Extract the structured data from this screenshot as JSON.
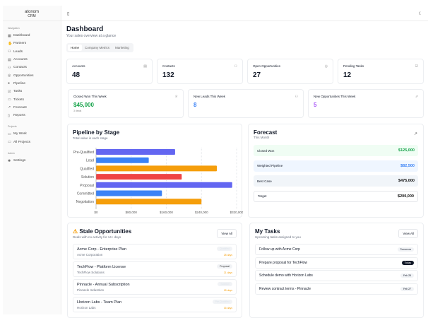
{
  "app": {
    "logo": "atonom",
    "logo_sub": "CRM"
  },
  "sidebar": {
    "sections": [
      {
        "title": "Navigation",
        "items": [
          {
            "label": "Dashboard",
            "icon": "grid-icon"
          },
          {
            "label": "Partners",
            "icon": "handshake-icon"
          },
          {
            "label": "Leads",
            "icon": "user-plus-icon"
          },
          {
            "label": "Accounts",
            "icon": "building-icon"
          },
          {
            "label": "Contacts",
            "icon": "users-icon"
          },
          {
            "label": "Opportunities",
            "icon": "target-icon"
          },
          {
            "label": "Pipeline",
            "icon": "pipeline-icon"
          },
          {
            "label": "Tasks",
            "icon": "checklist-icon"
          },
          {
            "label": "Tickets",
            "icon": "ticket-icon"
          },
          {
            "label": "Forecast",
            "icon": "trend-icon"
          },
          {
            "label": "Reports",
            "icon": "file-icon"
          }
        ]
      },
      {
        "title": "Projects",
        "items": [
          {
            "label": "My Work",
            "icon": "briefcase-icon"
          },
          {
            "label": "All Projects",
            "icon": "folder-icon"
          }
        ]
      },
      {
        "title": "Admin",
        "items": [
          {
            "label": "Settings",
            "icon": "gear-icon"
          }
        ]
      }
    ]
  },
  "header": {
    "title": "Dashboard",
    "subtitle": "Your sales overview at a glance",
    "tabs": [
      "Home",
      "Company Metrics",
      "Marketing"
    ],
    "active_tab": "Home"
  },
  "stats": [
    {
      "label": "Accounts",
      "value": "48"
    },
    {
      "label": "Contacts",
      "value": "132"
    },
    {
      "label": "Open Opportunities",
      "value": "27"
    },
    {
      "label": "Pending Tasks",
      "value": "12"
    }
  ],
  "weekly": [
    {
      "label": "Closed Won This Week",
      "value": "$45,000",
      "note": "3 deals",
      "color": "#16a34a"
    },
    {
      "label": "New Leads This Week",
      "value": "8",
      "color": "#3b82f6"
    },
    {
      "label": "New Opportunities This Week",
      "value": "5",
      "color": "#a855f7"
    }
  ],
  "pipeline": {
    "title": "Pipeline by Stage",
    "subtitle": "Total value in each stage"
  },
  "chart_data": {
    "type": "bar",
    "orientation": "horizontal",
    "categories": [
      "Pre-Qualified",
      "Lead",
      "Qualified",
      "Solution",
      "Proposal",
      "Committed",
      "Negotiation"
    ],
    "values": [
      180000,
      120000,
      275000,
      195000,
      310000,
      150000,
      240000
    ],
    "colors": [
      "#6366f1",
      "#3b82f6",
      "#f59e0b",
      "#ef4444",
      "#6366f1",
      "#3b82f6",
      "#f59e0b"
    ],
    "xlim": [
      0,
      320000
    ],
    "xticks": [
      "$0",
      "$80,000",
      "$160,000",
      "$240,000",
      "$320,000"
    ],
    "grid": true
  },
  "forecast": {
    "title": "Forecast",
    "subtitle": "This Month",
    "rows": [
      {
        "label": "Closed Won",
        "value": "$125,000"
      },
      {
        "label": "Weighted Pipeline",
        "value": "$82,500"
      },
      {
        "label": "Best Case",
        "value": "$475,000"
      },
      {
        "label": "Target",
        "value": "$200,000"
      }
    ]
  },
  "stale": {
    "title": "Stale Opportunities",
    "subtitle": "Deals with no activity for 14+ days",
    "view_all": "View All",
    "items": [
      {
        "title": "Acme Corp - Enterprise Plan",
        "company": "Acme Corporation",
        "stage": "Qualified",
        "days": "28 days"
      },
      {
        "title": "TechFlow - Platform License",
        "company": "TechFlow Solutions",
        "stage": "Proposal",
        "days": "21 days"
      },
      {
        "title": "Pinnacle - Annual Subscription",
        "company": "Pinnacle Industries",
        "stage": "Solution",
        "days": "18 days"
      },
      {
        "title": "Horizon Labs - Team Plan",
        "company": "Horizon Labs",
        "stage": "Pre-Qualified",
        "days": "16 days"
      }
    ]
  },
  "tasks": {
    "title": "My Tasks",
    "subtitle": "Upcoming tasks assigned to you",
    "view_all": "View All",
    "items": [
      {
        "title": "Follow up with Acme Corp",
        "due": "Tomorrow"
      },
      {
        "title": "Prepare proposal for TechFlow",
        "due": "Today"
      },
      {
        "title": "Schedule demo with Horizon Labs",
        "due": "Feb 25"
      },
      {
        "title": "Review contract terms - Pinnacle",
        "due": "Feb 27"
      }
    ]
  }
}
